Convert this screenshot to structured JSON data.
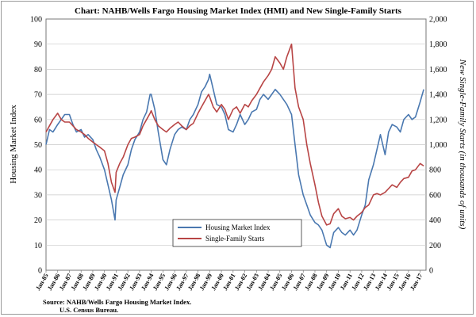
{
  "chart_data": {
    "type": "line",
    "title": "Chart:   NAHB/Wells Fargo  Housing  Market Index  (HMI) and  New  Single-Family  Starts",
    "ylabel_left": "Housing Market Index",
    "ylabel_right": "New  Single-Family  Starts  (in thousands of units)",
    "ylim_left": [
      0,
      100
    ],
    "ylim_right": [
      0,
      2000
    ],
    "yticks_left": [
      "0",
      "10",
      "20",
      "30",
      "40",
      "50",
      "60",
      "70",
      "80",
      "90",
      "100"
    ],
    "yticks_right": [
      "0",
      "200",
      "400",
      "600",
      "800",
      "1,000",
      "1,200",
      "1,400",
      "1,600",
      "1,800",
      "2,000"
    ],
    "xlim": [
      1985.0,
      2017.5
    ],
    "xtick_labels": [
      "Jan-85",
      "Jan-86",
      "Jan-87",
      "Jan-88",
      "Jan-89",
      "Jan-90",
      "Jan-91",
      "Jan-92",
      "Jan-93",
      "Jan-94",
      "Jan-95",
      "Jan-96",
      "Jan-97",
      "Jan-98",
      "Jan-99",
      "Jan-00",
      "Jan-01",
      "Jan-02",
      "Jan-03",
      "Jan-04",
      "Jan-05",
      "Jan-06",
      "Jan-07",
      "Jan-08",
      "Jan-09",
      "Jan-10",
      "Jan-11",
      "Jan-12",
      "Jan-13",
      "Jan-14",
      "Jan-15",
      "Jan-16",
      "Jan-17"
    ],
    "grid": true,
    "legend_position": "bottom-center",
    "series": [
      {
        "name": "Housing Market Index",
        "color": "#4a78b0",
        "axis": "left",
        "x": [
          1985.0,
          1985.3,
          1985.6,
          1986.0,
          1986.3,
          1986.6,
          1987.0,
          1987.3,
          1987.6,
          1988.0,
          1988.3,
          1988.6,
          1989.0,
          1989.3,
          1989.6,
          1990.0,
          1990.3,
          1990.6,
          1990.9,
          1991.0,
          1991.3,
          1991.6,
          1992.0,
          1992.3,
          1992.6,
          1993.0,
          1993.3,
          1993.6,
          1993.9,
          1994.0,
          1994.3,
          1994.6,
          1995.0,
          1995.3,
          1995.6,
          1996.0,
          1996.3,
          1996.6,
          1997.0,
          1997.3,
          1997.6,
          1998.0,
          1998.3,
          1998.6,
          1998.9,
          1999.0,
          1999.3,
          1999.6,
          2000.0,
          2000.3,
          2000.6,
          2001.0,
          2001.3,
          2001.6,
          2002.0,
          2002.3,
          2002.6,
          2003.0,
          2003.3,
          2003.6,
          2004.0,
          2004.3,
          2004.6,
          2005.0,
          2005.3,
          2005.6,
          2006.0,
          2006.3,
          2006.6,
          2007.0,
          2007.3,
          2007.6,
          2008.0,
          2008.3,
          2008.6,
          2009.0,
          2009.3,
          2009.6,
          2010.0,
          2010.3,
          2010.6,
          2011.0,
          2011.3,
          2011.6,
          2012.0,
          2012.3,
          2012.6,
          2013.0,
          2013.3,
          2013.6,
          2014.0,
          2014.3,
          2014.6,
          2015.0,
          2015.3,
          2015.6,
          2016.0,
          2016.3,
          2016.6,
          2017.0,
          2017.3
        ],
        "values": [
          50,
          56,
          55,
          58,
          60,
          62,
          62,
          58,
          55,
          56,
          53,
          54,
          52,
          48,
          45,
          40,
          34,
          28,
          20,
          28,
          33,
          38,
          42,
          48,
          52,
          55,
          60,
          63,
          70,
          70,
          64,
          55,
          44,
          42,
          48,
          54,
          56,
          57,
          56,
          60,
          62,
          66,
          71,
          73,
          76,
          78,
          72,
          66,
          65,
          62,
          56,
          55,
          58,
          62,
          58,
          60,
          63,
          64,
          68,
          70,
          68,
          70,
          72,
          70,
          68,
          66,
          62,
          50,
          38,
          30,
          26,
          22,
          19,
          18,
          16,
          10,
          9,
          15,
          17,
          15,
          14,
          16,
          14,
          16,
          22,
          26,
          36,
          42,
          48,
          54,
          46,
          55,
          58,
          57,
          55,
          60,
          62,
          60,
          61,
          67,
          72
        ]
      },
      {
        "name": "Single-Family Starts",
        "color": "#b84545",
        "axis": "right",
        "x": [
          1985.0,
          1985.3,
          1985.6,
          1986.0,
          1986.3,
          1986.6,
          1987.0,
          1987.3,
          1987.6,
          1988.0,
          1988.3,
          1988.6,
          1989.0,
          1989.3,
          1989.6,
          1990.0,
          1990.3,
          1990.6,
          1990.9,
          1991.0,
          1991.3,
          1991.6,
          1992.0,
          1992.3,
          1992.6,
          1993.0,
          1993.3,
          1993.6,
          1993.9,
          1994.0,
          1994.3,
          1994.6,
          1995.0,
          1995.3,
          1995.6,
          1996.0,
          1996.3,
          1996.6,
          1997.0,
          1997.3,
          1997.6,
          1998.0,
          1998.3,
          1998.6,
          1998.9,
          1999.0,
          1999.3,
          1999.6,
          2000.0,
          2000.3,
          2000.6,
          2001.0,
          2001.3,
          2001.6,
          2002.0,
          2002.3,
          2002.6,
          2003.0,
          2003.3,
          2003.6,
          2004.0,
          2004.3,
          2004.6,
          2005.0,
          2005.3,
          2005.6,
          2006.0,
          2006.3,
          2006.6,
          2007.0,
          2007.3,
          2007.6,
          2008.0,
          2008.3,
          2008.6,
          2009.0,
          2009.3,
          2009.6,
          2010.0,
          2010.3,
          2010.6,
          2011.0,
          2011.3,
          2011.6,
          2012.0,
          2012.3,
          2012.6,
          2013.0,
          2013.3,
          2013.6,
          2014.0,
          2014.3,
          2014.6,
          2015.0,
          2015.3,
          2015.6,
          2016.0,
          2016.3,
          2016.6,
          2017.0,
          2017.3
        ],
        "values": [
          1100,
          1150,
          1200,
          1250,
          1200,
          1180,
          1180,
          1150,
          1120,
          1100,
          1080,
          1050,
          1020,
          1000,
          980,
          950,
          850,
          700,
          620,
          780,
          850,
          900,
          1000,
          1050,
          1060,
          1080,
          1150,
          1200,
          1250,
          1270,
          1200,
          1150,
          1120,
          1100,
          1130,
          1160,
          1180,
          1150,
          1120,
          1150,
          1170,
          1250,
          1300,
          1350,
          1400,
          1380,
          1300,
          1260,
          1320,
          1280,
          1200,
          1280,
          1300,
          1250,
          1320,
          1300,
          1350,
          1400,
          1450,
          1500,
          1550,
          1600,
          1700,
          1650,
          1600,
          1700,
          1800,
          1450,
          1300,
          1200,
          1000,
          850,
          680,
          540,
          430,
          360,
          370,
          450,
          490,
          430,
          410,
          420,
          400,
          430,
          460,
          500,
          520,
          600,
          610,
          600,
          620,
          650,
          680,
          660,
          700,
          730,
          740,
          790,
          800,
          850,
          830
        ]
      }
    ]
  },
  "legend": {
    "items": [
      "Housing Market Index",
      "Single-Family Starts"
    ]
  },
  "source": {
    "line1": "Source:  NAHB/Wells Fargo  Housing Market Index.",
    "line2": "U.S. Census Bureau."
  }
}
